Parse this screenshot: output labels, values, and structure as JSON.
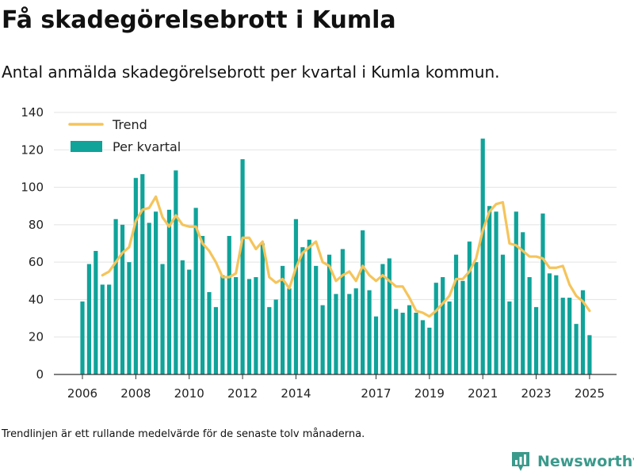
{
  "header": {
    "title": "Få skadegörelsebrott i Kumla",
    "subtitle": "Antal anmälda skadegörelsebrott per kvartal i Kumla kommun."
  },
  "footer": {
    "note": "Trendlinjen är ett rullande medelvärde för de senaste tolv månaderna.",
    "brand": "Newsworthy"
  },
  "colors": {
    "bar": "#0fa39a",
    "trend": "#f5c45a",
    "grid": "#e3e3e3",
    "axis": "#333333",
    "brand": "#3a9a8c"
  },
  "chart_data": {
    "type": "bar",
    "title": "Få skadegörelsebrott i Kumla",
    "subtitle": "Antal anmälda skadegörelsebrott per kvartal i Kumla kommun.",
    "xlabel": "",
    "ylabel": "",
    "ylim": [
      0,
      140
    ],
    "yticks": [
      0,
      20,
      40,
      60,
      80,
      100,
      120,
      140
    ],
    "xticks": [
      "2006",
      "2008",
      "2010",
      "2012",
      "2014",
      "2017",
      "2019",
      "2021",
      "2023",
      "2025"
    ],
    "grid": true,
    "legend_position": "top-left",
    "categories": [
      "2006 Q1",
      "2006 Q2",
      "2006 Q3",
      "2006 Q4",
      "2007 Q1",
      "2007 Q2",
      "2007 Q3",
      "2007 Q4",
      "2008 Q1",
      "2008 Q2",
      "2008 Q3",
      "2008 Q4",
      "2009 Q1",
      "2009 Q2",
      "2009 Q3",
      "2009 Q4",
      "2010 Q1",
      "2010 Q2",
      "2010 Q3",
      "2010 Q4",
      "2011 Q1",
      "2011 Q2",
      "2011 Q3",
      "2011 Q4",
      "2012 Q1",
      "2012 Q2",
      "2012 Q3",
      "2012 Q4",
      "2013 Q1",
      "2013 Q2",
      "2013 Q3",
      "2013 Q4",
      "2014 Q1",
      "2014 Q2",
      "2014 Q3",
      "2014 Q4",
      "2015 Q1",
      "2015 Q2",
      "2015 Q3",
      "2015 Q4",
      "2016 Q1",
      "2016 Q2",
      "2016 Q3",
      "2016 Q4",
      "2017 Q1",
      "2017 Q2",
      "2017 Q3",
      "2017 Q4",
      "2018 Q1",
      "2018 Q2",
      "2018 Q3",
      "2018 Q4",
      "2019 Q1",
      "2019 Q2",
      "2019 Q3",
      "2019 Q4",
      "2020 Q1",
      "2020 Q2",
      "2020 Q3",
      "2020 Q4",
      "2021 Q1",
      "2021 Q2",
      "2021 Q3",
      "2021 Q4",
      "2022 Q1",
      "2022 Q2",
      "2022 Q3",
      "2022 Q4",
      "2023 Q1",
      "2023 Q2",
      "2023 Q3",
      "2023 Q4",
      "2024 Q1",
      "2024 Q2",
      "2024 Q3",
      "2024 Q4",
      "2025 Q1"
    ],
    "series": [
      {
        "name": "Per kvartal",
        "type": "bar",
        "values": [
          39,
          59,
          66,
          48,
          48,
          83,
          80,
          60,
          105,
          107,
          81,
          87,
          59,
          88,
          109,
          61,
          56,
          89,
          74,
          44,
          36,
          53,
          74,
          52,
          115,
          51,
          52,
          70,
          36,
          40,
          58,
          46,
          83,
          68,
          72,
          58,
          37,
          64,
          43,
          67,
          43,
          46,
          77,
          45,
          31,
          59,
          62,
          35,
          33,
          37,
          33,
          29,
          25,
          49,
          52,
          39,
          64,
          50,
          71,
          60,
          126,
          90,
          87,
          64,
          39,
          87,
          76,
          52,
          36,
          86,
          54,
          53,
          41,
          41,
          27,
          45,
          21
        ]
      },
      {
        "name": "Trend",
        "type": "line",
        "values": [
          null,
          null,
          null,
          53,
          55,
          60,
          65,
          68,
          82,
          88,
          89,
          95,
          84,
          79,
          85,
          80,
          79,
          79,
          70,
          66,
          60,
          52,
          52,
          54,
          73,
          73,
          67,
          71,
          52,
          49,
          51,
          46,
          57,
          65,
          68,
          71,
          60,
          58,
          50,
          53,
          55,
          50,
          58,
          53,
          50,
          53,
          50,
          47,
          47,
          41,
          34,
          33,
          31,
          34,
          38,
          42,
          51,
          51,
          55,
          62,
          77,
          87,
          91,
          92,
          70,
          69,
          66,
          63,
          63,
          62,
          57,
          57,
          58,
          48,
          42,
          39,
          34
        ]
      }
    ]
  }
}
